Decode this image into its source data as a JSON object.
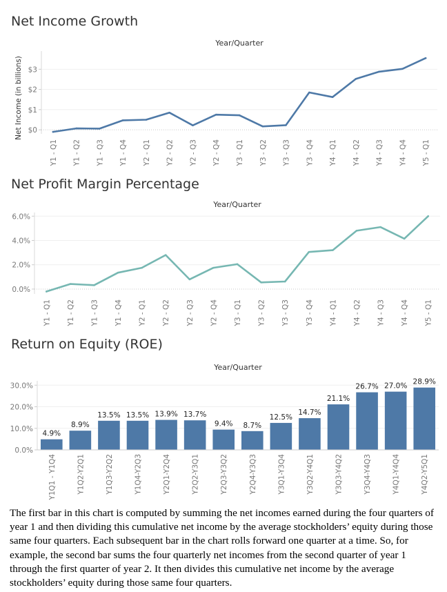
{
  "colors": {
    "line1": "#4e79a7",
    "line2": "#76b7b2",
    "bar": "#4e79a7"
  },
  "chart_data": [
    {
      "type": "line",
      "title": "Net Income Growth",
      "xlabel": "Year/Quarter",
      "ylabel": "Net Income (in billions)",
      "categories": [
        "Y1 - Q1",
        "Y1 - Q2",
        "Y1 - Q3",
        "Y1 - Q4",
        "Y2 - Q1",
        "Y2 - Q2",
        "Y2 - Q3",
        "Y2 - Q4",
        "Y3 - Q1",
        "Y3 - Q2",
        "Y3 - Q3",
        "Y3 - Q4",
        "Y4 - Q1",
        "Y4 - Q2",
        "Y4 - Q3",
        "Y4 - Q4",
        "Y5 - Q1"
      ],
      "values": [
        -0.1,
        0.07,
        0.06,
        0.47,
        0.5,
        0.85,
        0.22,
        0.75,
        0.72,
        0.17,
        0.23,
        1.85,
        1.62,
        2.52,
        2.88,
        3.02,
        3.55
      ],
      "yticks": [
        0,
        1,
        2,
        3
      ],
      "ytick_labels": [
        "$0",
        "$1",
        "$2",
        "$3"
      ],
      "ylim": [
        -0.2,
        3.9
      ]
    },
    {
      "type": "line",
      "title": "Net Profit Margin Percentage",
      "xlabel": "Year/Quarter",
      "categories": [
        "Y1 - Q1",
        "Y1 - Q2",
        "Y1 - Q3",
        "Y1 - Q4",
        "Y2 - Q1",
        "Y2 - Q2",
        "Y2 - Q3",
        "Y2 - Q4",
        "Y3 - Q1",
        "Y3 - Q2",
        "Y3 - Q3",
        "Y3 - Q4",
        "Y4 - Q1",
        "Y4 - Q2",
        "Y4 - Q3",
        "Y4 - Q4",
        "Y5 - Q1"
      ],
      "values": [
        -0.2,
        0.42,
        0.32,
        1.35,
        1.75,
        2.8,
        0.8,
        1.75,
        2.05,
        0.55,
        0.62,
        3.05,
        3.2,
        4.8,
        5.1,
        4.15,
        6.0
      ],
      "yticks": [
        0,
        2,
        4,
        6
      ],
      "ytick_labels": [
        "0.0%",
        "2.0%",
        "4.0%",
        "6.0%"
      ],
      "ylim": [
        -0.4,
        6.3
      ]
    },
    {
      "type": "bar",
      "title": "Return on Equity (ROE)",
      "xlabel": "Year/Quarter",
      "categories": [
        "Y1Q1 - Y1Q4",
        "Y1Q2-Y2Q1",
        "Y1Q3-Y2Q2",
        "Y1Q4-Y2Q3",
        "Y2Q1-Y2Q4",
        "Y2Q2-Y3Q1",
        "Y2Q3-Y3Q2",
        "Y2Q4-Y3Q3",
        "Y3Q1-Y3Q4",
        "Y3Q2-Y4Q1",
        "Y3Q3-Y4Q2",
        "Y3Q4-Y4Q3",
        "Y4Q1-Y4Q4",
        "Y4Q2-Y5Q1"
      ],
      "values": [
        4.9,
        8.9,
        13.5,
        13.5,
        13.9,
        13.7,
        9.4,
        8.7,
        12.5,
        14.7,
        21.1,
        26.7,
        27.0,
        28.9
      ],
      "data_labels": [
        "4.9%",
        "8.9%",
        "13.5%",
        "13.5%",
        "13.9%",
        "13.7%",
        "9.4%",
        "8.7%",
        "12.5%",
        "14.7%",
        "21.1%",
        "26.7%",
        "27.0%",
        "28.9%"
      ],
      "yticks": [
        0,
        10,
        20,
        30
      ],
      "ytick_labels": [
        "0.0%",
        "10.0%",
        "20.0%",
        "30.0%"
      ],
      "ylim": [
        0,
        32
      ]
    }
  ],
  "caption": "The first bar in this chart is computed by summing the net incomes earned during the four quarters of year 1 and then dividing this cumulative net income by the average stockholders’ equity during those same four quarters. Each subsequent bar in the chart rolls forward one quarter at a time. So, for example, the second bar sums the four quarterly net incomes from the second quarter of year 1 through the first quarter of year 2. It then divides this cumulative net income by the average stockholders’ equity during those same four quarters."
}
